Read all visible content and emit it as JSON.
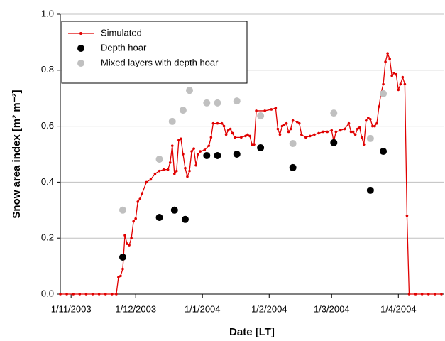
{
  "chart_data": {
    "type": "line",
    "xlabel": "Date [LT]",
    "ylabel": "Snow area index [m² m⁻²]",
    "xlim": [
      "2003-10-27",
      "2004-04-22"
    ],
    "xticks": [
      {
        "value": "2003-11-01",
        "label": "1/11/2003"
      },
      {
        "value": "2003-12-01",
        "label": "1/12/2003"
      },
      {
        "value": "2004-01-01",
        "label": "1/1/2004"
      },
      {
        "value": "2004-02-01",
        "label": "1/2/2004"
      },
      {
        "value": "2004-03-01",
        "label": "1/3/2004"
      },
      {
        "value": "2004-04-01",
        "label": "1/4/2004"
      }
    ],
    "ylim": [
      0,
      1
    ],
    "yticks": [
      {
        "value": 0,
        "label": "0.0"
      },
      0.2,
      0.4,
      0.6,
      0.8,
      {
        "value": 1,
        "label": "1.0"
      }
    ],
    "grid": true,
    "legend": "upper left",
    "series": [
      {
        "name": "Simulated",
        "color": "#e00000",
        "type": "line",
        "x": [
          "2003-10-27",
          "2003-10-30",
          "2003-11-02",
          "2003-11-05",
          "2003-11-08",
          "2003-11-11",
          "2003-11-14",
          "2003-11-17",
          "2003-11-20",
          "2003-11-22",
          "2003-11-23",
          "2003-11-24",
          "2003-11-25",
          "2003-11-26",
          "2003-11-27",
          "2003-11-28",
          "2003-11-29",
          "2003-11-30",
          "2003-12-01",
          "2003-12-02",
          "2003-12-03",
          "2003-12-04",
          "2003-12-06",
          "2003-12-08",
          "2003-12-10",
          "2003-12-12",
          "2003-12-14",
          "2003-12-16",
          "2003-12-17",
          "2003-12-18",
          "2003-12-19",
          "2003-12-20",
          "2003-12-21",
          "2003-12-22",
          "2003-12-23",
          "2003-12-24",
          "2003-12-25",
          "2003-12-26",
          "2003-12-27",
          "2003-12-28",
          "2003-12-29",
          "2003-12-30",
          "2003-12-31",
          "2004-01-02",
          "2004-01-04",
          "2004-01-05",
          "2004-01-06",
          "2004-01-08",
          "2004-01-10",
          "2004-01-11",
          "2004-01-12",
          "2004-01-13",
          "2004-01-14",
          "2004-01-15",
          "2004-01-16",
          "2004-01-19",
          "2004-01-21",
          "2004-01-22",
          "2004-01-23",
          "2004-01-24",
          "2004-01-25",
          "2004-01-26",
          "2004-01-30",
          "2004-02-02",
          "2004-02-04",
          "2004-02-05",
          "2004-02-06",
          "2004-02-07",
          "2004-02-08",
          "2004-02-09",
          "2004-02-10",
          "2004-02-11",
          "2004-02-12",
          "2004-02-14",
          "2004-02-15",
          "2004-02-16",
          "2004-02-18",
          "2004-02-20",
          "2004-02-22",
          "2004-02-24",
          "2004-02-26",
          "2004-02-28",
          "2004-03-01",
          "2004-03-02",
          "2004-03-03",
          "2004-03-05",
          "2004-03-07",
          "2004-03-09",
          "2004-03-10",
          "2004-03-11",
          "2004-03-12",
          "2004-03-13",
          "2004-03-14",
          "2004-03-15",
          "2004-03-16",
          "2004-03-17",
          "2004-03-18",
          "2004-03-19",
          "2004-03-20",
          "2004-03-21",
          "2004-03-22",
          "2004-03-23",
          "2004-03-24",
          "2004-03-25",
          "2004-03-26",
          "2004-03-27",
          "2004-03-28",
          "2004-03-29",
          "2004-03-30",
          "2004-03-31",
          "2004-04-01",
          "2004-04-02",
          "2004-04-03",
          "2004-04-04",
          "2004-04-05",
          "2004-04-06",
          "2004-04-09",
          "2004-04-12",
          "2004-04-15",
          "2004-04-18",
          "2004-04-21"
        ],
        "values": [
          0,
          0,
          0,
          0,
          0,
          0,
          0,
          0,
          0,
          0,
          0.06,
          0.065,
          0.09,
          0.21,
          0.18,
          0.175,
          0.2,
          0.26,
          0.27,
          0.33,
          0.34,
          0.36,
          0.4,
          0.41,
          0.43,
          0.44,
          0.445,
          0.445,
          0.47,
          0.53,
          0.43,
          0.44,
          0.55,
          0.555,
          0.5,
          0.45,
          0.42,
          0.44,
          0.51,
          0.52,
          0.46,
          0.5,
          0.51,
          0.515,
          0.53,
          0.56,
          0.61,
          0.61,
          0.61,
          0.6,
          0.57,
          0.585,
          0.59,
          0.575,
          0.56,
          0.56,
          0.565,
          0.57,
          0.565,
          0.535,
          0.535,
          0.655,
          0.655,
          0.66,
          0.665,
          0.59,
          0.57,
          0.6,
          0.605,
          0.61,
          0.58,
          0.59,
          0.62,
          0.615,
          0.61,
          0.57,
          0.56,
          0.565,
          0.57,
          0.575,
          0.58,
          0.58,
          0.585,
          0.545,
          0.58,
          0.585,
          0.59,
          0.61,
          0.58,
          0.58,
          0.57,
          0.59,
          0.595,
          0.56,
          0.535,
          0.62,
          0.63,
          0.625,
          0.6,
          0.6,
          0.61,
          0.67,
          0.72,
          0.75,
          0.83,
          0.86,
          0.84,
          0.78,
          0.79,
          0.785,
          0.73,
          0.75,
          0.775,
          0.75,
          0.28,
          0,
          0,
          0,
          0,
          0,
          0
        ]
      },
      {
        "name": "Depth hoar",
        "color": "#000000",
        "type": "scatter",
        "x": [
          "2003-11-25",
          "2003-12-12",
          "2003-12-19",
          "2003-12-24",
          "2004-01-03",
          "2004-01-08",
          "2004-01-17",
          "2004-01-28",
          "2004-02-12",
          "2004-03-02",
          "2004-03-19",
          "2004-03-25"
        ],
        "values": [
          0.132,
          0.274,
          0.3,
          0.267,
          0.495,
          0.495,
          0.5,
          0.523,
          0.452,
          0.541,
          0.371,
          0.51
        ]
      },
      {
        "name": "Mixed layers with depth hoar",
        "color": "#c0c0c0",
        "type": "scatter",
        "x": [
          "2003-11-25",
          "2003-12-12",
          "2003-12-18",
          "2003-12-23",
          "2003-12-26",
          "2004-01-03",
          "2004-01-08",
          "2004-01-17",
          "2004-01-28",
          "2004-02-12",
          "2004-03-02",
          "2004-03-19",
          "2004-03-25"
        ],
        "values": [
          0.3,
          0.482,
          0.617,
          0.657,
          0.728,
          0.683,
          0.683,
          0.69,
          0.637,
          0.538,
          0.647,
          0.556,
          0.716
        ]
      }
    ]
  }
}
